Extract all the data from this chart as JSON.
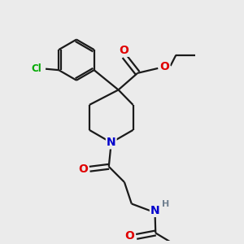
{
  "bg_color": "#ebebeb",
  "bond_color": "#1a1a1a",
  "atom_colors": {
    "O": "#e00000",
    "N": "#0000cc",
    "Cl": "#00aa00",
    "H": "#708090",
    "C": "#1a1a1a"
  },
  "lw": 1.6,
  "dbo": 0.12
}
